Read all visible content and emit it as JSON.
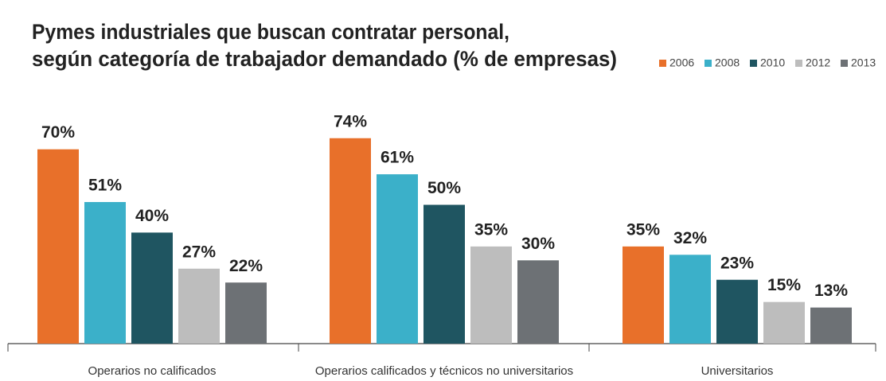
{
  "chart_data": {
    "type": "bar",
    "title": [
      "Pymes industriales que buscan contratar personal,",
      "según categoría de trabajador demandado (% de empresas)"
    ],
    "categories": [
      "Operarios no calificados",
      "Operarios calificados y técnicos no universitarios",
      "Universitarios"
    ],
    "series": [
      {
        "name": "2006",
        "color": "#e8702a",
        "values": [
          70,
          74,
          35
        ],
        "value_labels": [
          "70%",
          "74%",
          "35%"
        ]
      },
      {
        "name": "2008",
        "color": "#3bb0c9",
        "values": [
          51,
          61,
          32
        ],
        "value_labels": [
          "51%",
          "61%",
          "32%"
        ]
      },
      {
        "name": "2010",
        "color": "#1f5561",
        "values": [
          40,
          50,
          23
        ],
        "value_labels": [
          "40%",
          "50%",
          "23%"
        ]
      },
      {
        "name": "2012",
        "color": "#bdbdbd",
        "values": [
          27,
          35,
          15
        ],
        "value_labels": [
          "27%",
          "35%",
          "15%"
        ]
      },
      {
        "name": "2013",
        "color": "#6d7175",
        "values": [
          22,
          30,
          13
        ],
        "value_labels": [
          "22%",
          "30%",
          "13%"
        ]
      }
    ]
  }
}
